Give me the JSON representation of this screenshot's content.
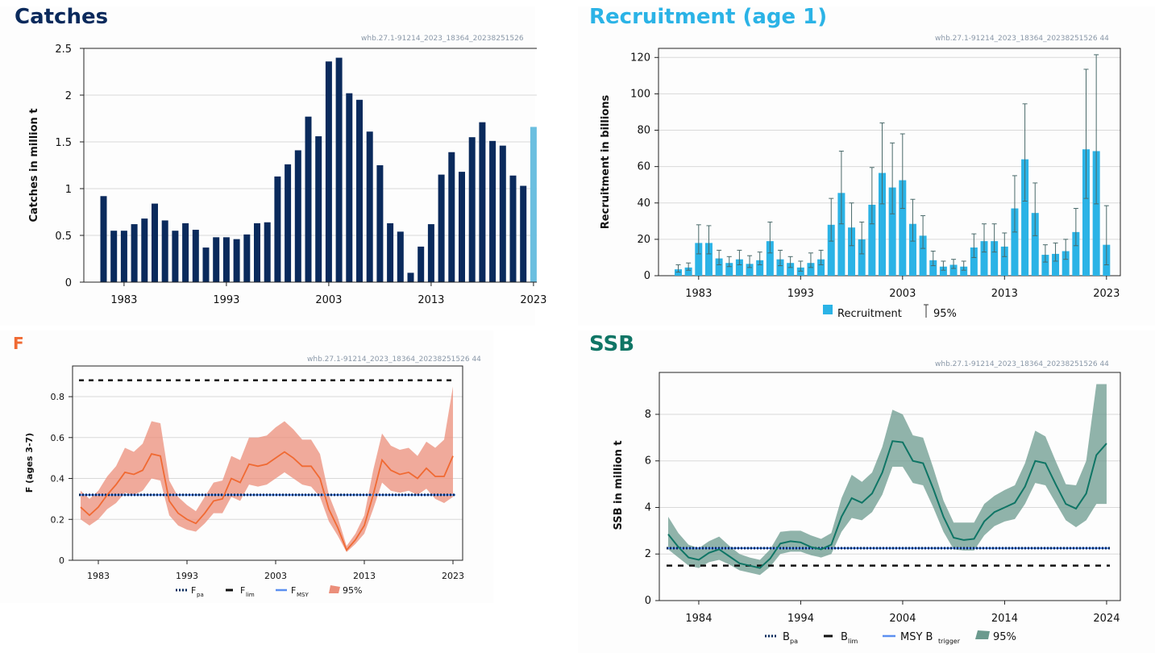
{
  "panels": {
    "catches": {
      "title": "Catches",
      "watermark": "whb.27.1-91214_2023_18364_20238251526",
      "color": "#0a2a5c"
    },
    "recruitment": {
      "title": "Recruitment (age 1)",
      "watermark": "whb.27.1-91214_2023_18364_20238251526 44",
      "color": "#2bb3e6"
    },
    "f": {
      "title": "F",
      "watermark": "whb.27.1-91214_2023_18364_20238251526 44",
      "color": "#f06a33"
    },
    "ssb": {
      "title": "SSB",
      "watermark": "whb.27.1-91214_2023_18364_20238251526 44",
      "color": "#0f7565"
    }
  },
  "legends": {
    "recruitment": {
      "bar": "Recruitment",
      "ci": "95%"
    },
    "f": {
      "fpa": "F",
      "fpa_sub": "pa",
      "flim": "F",
      "flim_sub": "lim",
      "fmsy": "F",
      "fmsy_sub": "MSY",
      "ci": "95%"
    },
    "ssb": {
      "bpa": "B",
      "bpa_sub": "pa",
      "blim": "B",
      "blim_sub": "lim",
      "msy": "MSY B",
      "msy_sub": "trigger",
      "ci": "95%"
    }
  },
  "chart_data": [
    {
      "id": "catches",
      "type": "bar",
      "ylabel": "Catches in million t",
      "ylim": [
        0,
        2.5
      ],
      "yticks": [
        0,
        0.5,
        1,
        1.5,
        2,
        2.5
      ],
      "ytick_labels": [
        "0",
        "0.5",
        "1",
        "1.5",
        "2",
        "2.5"
      ],
      "xtick_labels": [
        "1983",
        "1993",
        "2003",
        "2013",
        "2023"
      ],
      "x": [
        1981,
        1982,
        1983,
        1984,
        1985,
        1986,
        1987,
        1988,
        1989,
        1990,
        1991,
        1992,
        1993,
        1994,
        1995,
        1996,
        1997,
        1998,
        1999,
        2000,
        2001,
        2002,
        2003,
        2004,
        2005,
        2006,
        2007,
        2008,
        2009,
        2010,
        2011,
        2012,
        2013,
        2014,
        2015,
        2016,
        2017,
        2018,
        2019,
        2020,
        2021,
        2022,
        2023
      ],
      "values": [
        0.92,
        0.55,
        0.55,
        0.62,
        0.68,
        0.84,
        0.66,
        0.55,
        0.63,
        0.56,
        0.37,
        0.48,
        0.48,
        0.46,
        0.51,
        0.63,
        0.64,
        1.13,
        1.26,
        1.41,
        1.77,
        1.56,
        2.36,
        2.4,
        2.02,
        1.95,
        1.61,
        1.25,
        0.63,
        0.54,
        0.1,
        0.38,
        0.62,
        1.15,
        1.39,
        1.18,
        1.55,
        1.71,
        1.51,
        1.46,
        1.14,
        1.03,
        1.66
      ],
      "colors": {
        "bar": "#0a2a5c",
        "last": "#6bbfe0"
      },
      "grid": true
    },
    {
      "id": "recruitment",
      "type": "bar",
      "ylabel": "Recruitment in billions",
      "ylim": [
        0,
        125
      ],
      "yticks": [
        0,
        20,
        40,
        60,
        80,
        100,
        120
      ],
      "xtick_labels": [
        "1983",
        "1993",
        "2003",
        "2013",
        "2023"
      ],
      "x": [
        1981,
        1982,
        1983,
        1984,
        1985,
        1986,
        1987,
        1988,
        1989,
        1990,
        1991,
        1992,
        1993,
        1994,
        1995,
        1996,
        1997,
        1998,
        1999,
        2000,
        2001,
        2002,
        2003,
        2004,
        2005,
        2006,
        2007,
        2008,
        2009,
        2010,
        2011,
        2012,
        2013,
        2014,
        2015,
        2016,
        2017,
        2018,
        2019,
        2020,
        2021,
        2022,
        2023
      ],
      "values": [
        3.5,
        4.5,
        18,
        18,
        9.5,
        7,
        9,
        6.5,
        8.5,
        19,
        9,
        7,
        4.5,
        7,
        9,
        28,
        45.5,
        26.5,
        20,
        39,
        56.5,
        48.5,
        52.5,
        28.5,
        22,
        8.5,
        5,
        6,
        5,
        15.5,
        19,
        19,
        16,
        37,
        64,
        34.5,
        11.5,
        12,
        13.5,
        24,
        69.5,
        68.5,
        17
      ],
      "upper": [
        6,
        7,
        28,
        27.5,
        14,
        10.5,
        14,
        11,
        13,
        29.5,
        14,
        10.5,
        8,
        12.5,
        14,
        42.5,
        68.5,
        40,
        29.5,
        59.5,
        84,
        73,
        78,
        42,
        33,
        13.5,
        8,
        9,
        8,
        23,
        28.5,
        28.5,
        23.5,
        55,
        94.5,
        51,
        17,
        18,
        20,
        37,
        113.5,
        121.5,
        38.5
      ],
      "lower": [
        2,
        3,
        12,
        12,
        6,
        5,
        6,
        4.5,
        6,
        12.5,
        5.5,
        4.5,
        2.5,
        4.5,
        6,
        19,
        28.5,
        16.5,
        12,
        28.5,
        39.5,
        34,
        37,
        19,
        15,
        5.5,
        3,
        4,
        3,
        10,
        13,
        13,
        10.5,
        24,
        41,
        22,
        7.5,
        8,
        9,
        16.5,
        42.5,
        39.5,
        6
      ],
      "colors": {
        "bar": "#2bb3e6",
        "ci": "#4a6a6a"
      },
      "legend": "bottom",
      "grid": true
    },
    {
      "id": "f",
      "type": "area",
      "ylabel": "F (ages 3-7)",
      "ylim": [
        0,
        0.95
      ],
      "yticks": [
        0,
        0.2,
        0.4,
        0.6,
        0.8
      ],
      "ytick_labels": [
        "0",
        "0.2",
        "0.4",
        "0.6",
        "0.8"
      ],
      "xtick_labels": [
        "1983",
        "1993",
        "2003",
        "2013",
        "2023"
      ],
      "x": [
        1981,
        1982,
        1983,
        1984,
        1985,
        1986,
        1987,
        1988,
        1989,
        1990,
        1991,
        1992,
        1993,
        1994,
        1995,
        1996,
        1997,
        1998,
        1999,
        2000,
        2001,
        2002,
        2003,
        2004,
        2005,
        2006,
        2007,
        2008,
        2009,
        2010,
        2011,
        2012,
        2013,
        2014,
        2015,
        2016,
        2017,
        2018,
        2019,
        2020,
        2021,
        2022,
        2023
      ],
      "values": [
        0.26,
        0.22,
        0.26,
        0.32,
        0.37,
        0.43,
        0.42,
        0.44,
        0.52,
        0.51,
        0.29,
        0.23,
        0.2,
        0.18,
        0.23,
        0.29,
        0.3,
        0.4,
        0.38,
        0.47,
        0.46,
        0.47,
        0.5,
        0.53,
        0.5,
        0.46,
        0.46,
        0.4,
        0.25,
        0.16,
        0.05,
        0.1,
        0.17,
        0.32,
        0.49,
        0.44,
        0.42,
        0.43,
        0.4,
        0.45,
        0.41,
        0.41,
        0.51
      ],
      "upper": [
        0.34,
        0.3,
        0.34,
        0.41,
        0.46,
        0.55,
        0.53,
        0.57,
        0.68,
        0.67,
        0.39,
        0.31,
        0.27,
        0.24,
        0.31,
        0.38,
        0.39,
        0.51,
        0.49,
        0.6,
        0.6,
        0.61,
        0.65,
        0.68,
        0.64,
        0.59,
        0.59,
        0.52,
        0.32,
        0.21,
        0.07,
        0.13,
        0.22,
        0.44,
        0.62,
        0.56,
        0.54,
        0.55,
        0.51,
        0.58,
        0.55,
        0.59,
        0.85
      ],
      "lower": [
        0.2,
        0.17,
        0.2,
        0.25,
        0.28,
        0.33,
        0.32,
        0.34,
        0.4,
        0.39,
        0.22,
        0.17,
        0.15,
        0.14,
        0.18,
        0.23,
        0.23,
        0.31,
        0.29,
        0.37,
        0.36,
        0.37,
        0.4,
        0.43,
        0.4,
        0.37,
        0.36,
        0.31,
        0.19,
        0.12,
        0.04,
        0.08,
        0.13,
        0.25,
        0.38,
        0.34,
        0.33,
        0.34,
        0.32,
        0.35,
        0.3,
        0.28,
        0.31
      ],
      "refs": {
        "fpa": 0.32,
        "flim": 0.88,
        "fmsy": 0.32
      },
      "colors": {
        "line": "#f06a33",
        "band": "#eb8e7a",
        "fpa": "#0a2a5c",
        "flim": "#111111",
        "fmsy": "#5b8ff0"
      },
      "legend": "bottom",
      "grid": true
    },
    {
      "id": "ssb",
      "type": "area",
      "ylabel": "SSB in million t",
      "ylim": [
        0,
        9.8
      ],
      "yticks": [
        0,
        2,
        4,
        6,
        8
      ],
      "xtick_labels": [
        "1984",
        "1994",
        "2004",
        "2014",
        "2024"
      ],
      "x": [
        1981,
        1982,
        1983,
        1984,
        1985,
        1986,
        1987,
        1988,
        1989,
        1990,
        1991,
        1992,
        1993,
        1994,
        1995,
        1996,
        1997,
        1998,
        1999,
        2000,
        2001,
        2002,
        2003,
        2004,
        2005,
        2006,
        2007,
        2008,
        2009,
        2010,
        2011,
        2012,
        2013,
        2014,
        2015,
        2016,
        2017,
        2018,
        2019,
        2020,
        2021,
        2022,
        2023,
        2024
      ],
      "values": [
        2.85,
        2.3,
        1.85,
        1.75,
        2.05,
        2.2,
        1.9,
        1.6,
        1.5,
        1.4,
        1.8,
        2.45,
        2.55,
        2.5,
        2.3,
        2.2,
        2.4,
        3.6,
        4.4,
        4.2,
        4.6,
        5.5,
        6.85,
        6.8,
        6.0,
        5.9,
        4.8,
        3.6,
        2.7,
        2.6,
        2.65,
        3.4,
        3.8,
        4.0,
        4.2,
        4.9,
        6.0,
        5.9,
        5.0,
        4.15,
        3.95,
        4.6,
        6.25,
        6.75
      ],
      "upper": [
        3.6,
        2.9,
        2.4,
        2.25,
        2.55,
        2.75,
        2.35,
        2.0,
        1.85,
        1.75,
        2.2,
        2.95,
        3.0,
        3.0,
        2.8,
        2.65,
        2.9,
        4.4,
        5.4,
        5.1,
        5.5,
        6.6,
        8.2,
        8.0,
        7.1,
        7.0,
        5.7,
        4.3,
        3.35,
        3.35,
        3.35,
        4.15,
        4.5,
        4.75,
        4.95,
        5.9,
        7.3,
        7.05,
        6.0,
        5.0,
        4.95,
        6.0,
        9.3,
        9.3
      ],
      "lower": [
        2.2,
        1.85,
        1.5,
        1.4,
        1.65,
        1.75,
        1.55,
        1.3,
        1.2,
        1.1,
        1.45,
        2.0,
        2.1,
        2.1,
        1.95,
        1.85,
        2.0,
        2.95,
        3.55,
        3.45,
        3.8,
        4.55,
        5.75,
        5.75,
        5.05,
        4.95,
        4.0,
        2.95,
        2.2,
        2.15,
        2.15,
        2.8,
        3.2,
        3.4,
        3.5,
        4.15,
        5.05,
        4.95,
        4.2,
        3.45,
        3.15,
        3.45,
        4.15,
        4.15
      ],
      "refs": {
        "bpa": 2.25,
        "blim": 1.5,
        "msy": 2.25
      },
      "colors": {
        "line": "#0f7565",
        "band": "#6b9a8e",
        "bpa": "#0a2a5c",
        "blim": "#111111",
        "msy": "#5b8ff0"
      },
      "legend": "bottom",
      "grid": true
    }
  ]
}
